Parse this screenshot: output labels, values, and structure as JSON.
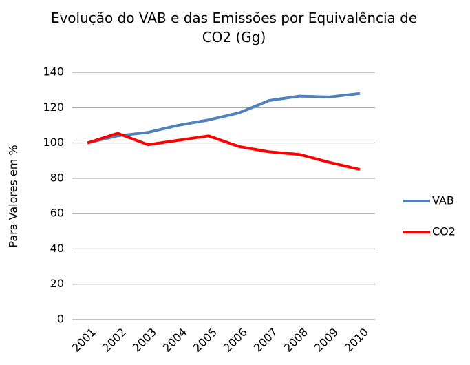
{
  "chart_data": {
    "type": "line",
    "title": "Evolução do VAB e das Emissões por Equivalência de CO2 (Gg)",
    "y_label": "Para Valores em %",
    "categories": [
      "2001",
      "2002",
      "2003",
      "2004",
      "2005",
      "2006",
      "2007",
      "2008",
      "2009",
      "2010"
    ],
    "series": [
      {
        "name": "VAB",
        "color": "#4f81bd",
        "values": [
          100,
          104,
          106,
          110,
          113,
          117,
          124,
          126.5,
          126,
          128
        ]
      },
      {
        "name": "CO2",
        "color": "#ff0000",
        "values": [
          100,
          105.5,
          99,
          101.5,
          104,
          98,
          95,
          93.5,
          89,
          85
        ]
      }
    ],
    "ylim": [
      0,
      140
    ],
    "yticks": [
      0,
      20,
      40,
      60,
      80,
      100,
      120,
      140
    ],
    "grid": true,
    "legend": "right"
  }
}
